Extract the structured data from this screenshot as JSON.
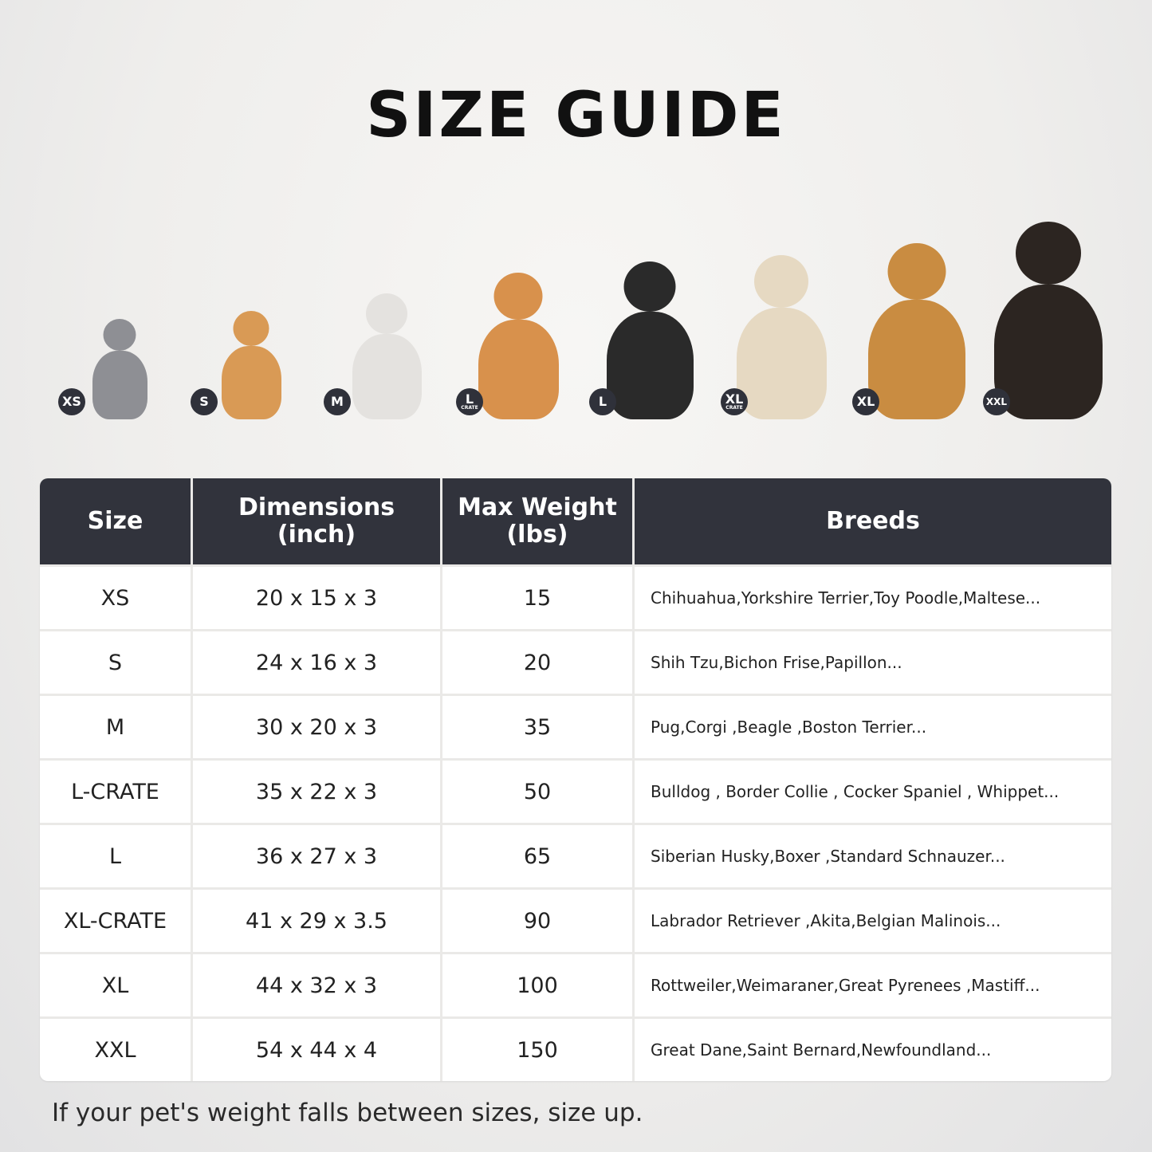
{
  "title": "SIZE GUIDE",
  "pets": [
    {
      "badge": "XS",
      "sub": "",
      "color": "#8e8f94"
    },
    {
      "badge": "S",
      "sub": "",
      "color": "#d99a55"
    },
    {
      "badge": "M",
      "sub": "",
      "color": "#e4e2df"
    },
    {
      "badge": "L",
      "sub": "CRATE",
      "color": "#d8914c"
    },
    {
      "badge": "L",
      "sub": "",
      "color": "#2a2a2a"
    },
    {
      "badge": "XL",
      "sub": "CRATE",
      "color": "#e6d9c2"
    },
    {
      "badge": "XL",
      "sub": "",
      "color": "#c98c41"
    },
    {
      "badge": "XXL",
      "sub": "",
      "color": "#2c2521"
    }
  ],
  "table": {
    "headers": {
      "size": "Size",
      "dimensions": "Dimensions",
      "dimensions_unit": "(inch)",
      "weight": "Max Weight",
      "weight_unit": "(lbs)",
      "breeds": "Breeds"
    },
    "rows": [
      {
        "size": "XS",
        "dimensions": "20 x 15 x 3",
        "weight": "15",
        "breeds": "Chihuahua,Yorkshire Terrier,Toy Poodle,Maltese..."
      },
      {
        "size": "S",
        "dimensions": "24 x 16 x 3",
        "weight": "20",
        "breeds": "Shih Tzu,Bichon Frise,Papillon..."
      },
      {
        "size": "M",
        "dimensions": "30 x 20 x 3",
        "weight": "35",
        "breeds": "Pug,Corgi ,Beagle ,Boston Terrier..."
      },
      {
        "size": "L-CRATE",
        "dimensions": "35 x 22 x 3",
        "weight": "50",
        "breeds": "Bulldog , Border Collie , Cocker Spaniel , Whippet..."
      },
      {
        "size": "L",
        "dimensions": "36 x 27 x 3",
        "weight": "65",
        "breeds": "Siberian Husky,Boxer ,Standard Schnauzer..."
      },
      {
        "size": "XL-CRATE",
        "dimensions": "41 x 29 x 3.5",
        "weight": "90",
        "breeds": "Labrador Retriever ,Akita,Belgian Malinois..."
      },
      {
        "size": "XL",
        "dimensions": "44 x 32 x 3",
        "weight": "100",
        "breeds": "Rottweiler,Weimaraner,Great Pyrenees ,Mastiff..."
      },
      {
        "size": "XXL",
        "dimensions": "54 x 44 x 4",
        "weight": "150",
        "breeds": "Great Dane,Saint Bernard,Newfoundland..."
      }
    ]
  },
  "footer": "If your pet's weight falls between sizes, size up.",
  "colors": {
    "header_bg": "#31333c",
    "badge_bg": "#2f313a"
  }
}
